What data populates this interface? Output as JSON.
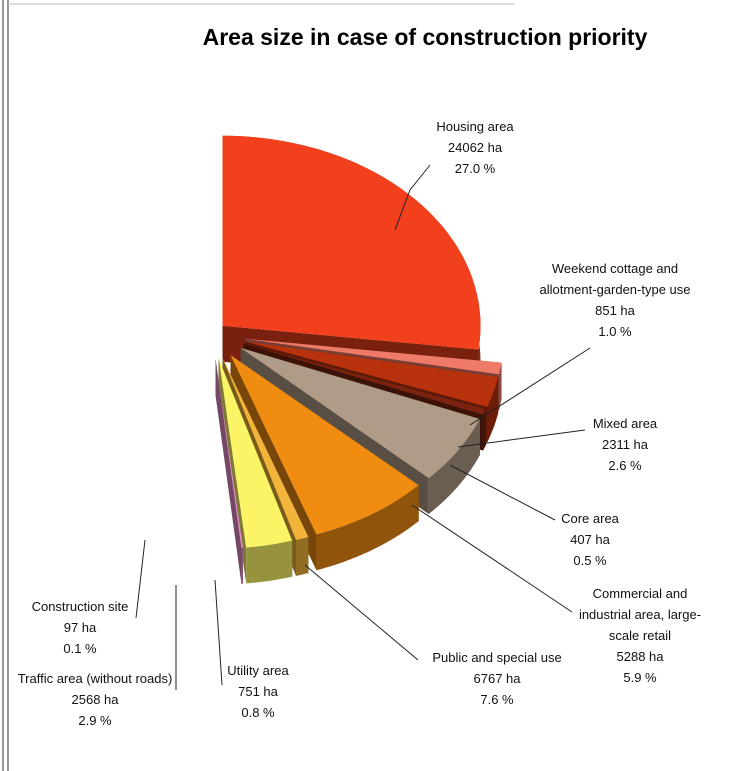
{
  "chart_data": {
    "type": "pie3d",
    "title": "Area size in case of construction priority",
    "categories": [
      "Housing area",
      "Weekend cottage and allotment-garden-type use",
      "Mixed area",
      "Core area",
      "Commercial and industrial area, large-scale retail",
      "Public and special use",
      "Utility area",
      "Traffic area (without roads)",
      "Construction site"
    ],
    "values": [
      24062,
      851,
      2311,
      407,
      5288,
      6767,
      751,
      2568,
      97
    ],
    "value_labels": [
      "24062 ha",
      "851 ha",
      "2311 ha",
      "407 ha",
      "5288 ha",
      "6767 ha",
      "751 ha",
      "2568 ha",
      "97 ha"
    ],
    "percentages": [
      27,
      1,
      2.6,
      0.5,
      5.9,
      7.6,
      0.8,
      2.9,
      0.1
    ],
    "percentage_labels": [
      "27.0 %",
      "1.0 %",
      "2.6 %",
      "0.5 %",
      "5.9 %",
      "7.6 %",
      "0.8 %",
      "2.9 %",
      "0.1 %"
    ],
    "colors": [
      "#f2401c",
      "#f07a68",
      "#b8320e",
      "#7a2410",
      "#b09c86",
      "#f08c10",
      "#f2b43a",
      "#fbf466",
      "#e690c8"
    ]
  }
}
